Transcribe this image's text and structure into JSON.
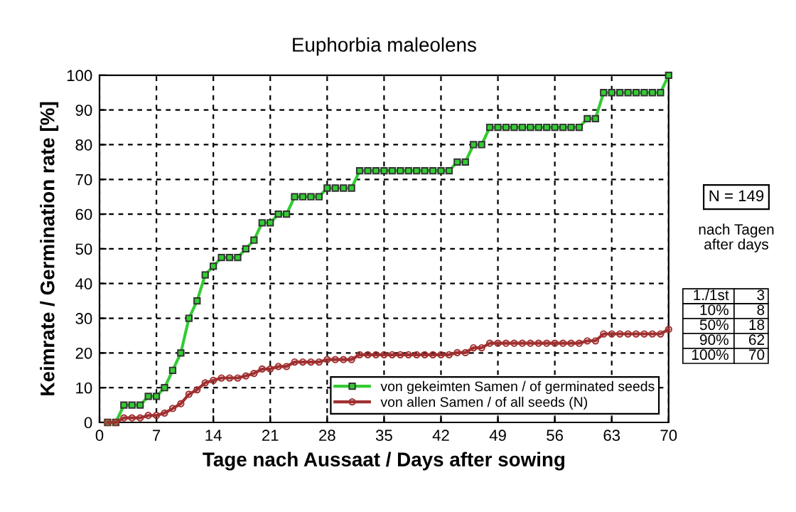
{
  "chart_data": {
    "type": "line",
    "title": "Euphorbia maleolens",
    "xlabel": "Tage nach Aussaat / Days after sowing",
    "ylabel": "Keimrate / Germination rate [%]",
    "x": [
      1,
      2,
      3,
      4,
      5,
      6,
      7,
      8,
      9,
      10,
      11,
      12,
      13,
      14,
      15,
      16,
      17,
      18,
      19,
      20,
      21,
      22,
      23,
      24,
      25,
      26,
      27,
      28,
      29,
      30,
      31,
      32,
      33,
      34,
      35,
      36,
      37,
      38,
      39,
      40,
      41,
      42,
      43,
      44,
      45,
      46,
      47,
      48,
      49,
      50,
      51,
      52,
      53,
      54,
      55,
      56,
      57,
      58,
      59,
      60,
      61,
      62,
      63,
      64,
      65,
      66,
      67,
      68,
      69,
      70
    ],
    "series": [
      {
        "name": "von gekeimten Samen / of germinated seeds",
        "color": "#33cc33",
        "marker": "square",
        "values": [
          0,
          0,
          5,
          5,
          5,
          7.5,
          7.5,
          10,
          15,
          20,
          30,
          35,
          42.5,
          45,
          47.5,
          47.5,
          47.5,
          50,
          52.5,
          57.5,
          57.5,
          60,
          60,
          65,
          65,
          65,
          65,
          67.5,
          67.5,
          67.5,
          67.5,
          72.5,
          72.5,
          72.5,
          72.5,
          72.5,
          72.5,
          72.5,
          72.5,
          72.5,
          72.5,
          72.5,
          72.5,
          75,
          75,
          80,
          80,
          85,
          85,
          85,
          85,
          85,
          85,
          85,
          85,
          85,
          85,
          85,
          85,
          87.5,
          87.5,
          95,
          95,
          95,
          95,
          95,
          95,
          95,
          95,
          100
        ]
      },
      {
        "name": "von allen Samen / of all seeds (N)",
        "color": "#a03030",
        "marker": "circle",
        "values": [
          0,
          0,
          1.3,
          1.3,
          1.3,
          2.0,
          2.0,
          2.7,
          4.0,
          5.4,
          8.1,
          9.4,
          11.4,
          12.1,
          12.8,
          12.8,
          12.8,
          13.4,
          14.1,
          15.4,
          15.4,
          16.1,
          16.1,
          17.4,
          17.4,
          17.4,
          17.4,
          18.1,
          18.1,
          18.1,
          18.1,
          19.5,
          19.5,
          19.5,
          19.5,
          19.5,
          19.5,
          19.5,
          19.5,
          19.5,
          19.5,
          19.5,
          19.5,
          20.1,
          20.1,
          21.5,
          21.5,
          22.8,
          22.8,
          22.8,
          22.8,
          22.8,
          22.8,
          22.8,
          22.8,
          22.8,
          22.8,
          22.8,
          22.8,
          23.5,
          23.5,
          25.5,
          25.5,
          25.5,
          25.5,
          25.5,
          25.5,
          25.5,
          25.5,
          26.8
        ]
      }
    ],
    "xlim": [
      0,
      70
    ],
    "xticks": [
      0,
      7,
      14,
      21,
      28,
      35,
      42,
      49,
      56,
      63,
      70
    ],
    "ylim": [
      0,
      100
    ],
    "yticks": [
      0,
      10,
      20,
      30,
      40,
      50,
      60,
      70,
      80,
      90,
      100
    ],
    "grid": true,
    "legend": "bottom right",
    "line_style": "solid",
    "annotations": [
      "N = 149",
      "nach Tagen\nafter days",
      "1./1st",
      "3",
      "10%",
      "8",
      "50%",
      "18",
      "90%",
      "62",
      "100%",
      "70"
    ]
  }
}
